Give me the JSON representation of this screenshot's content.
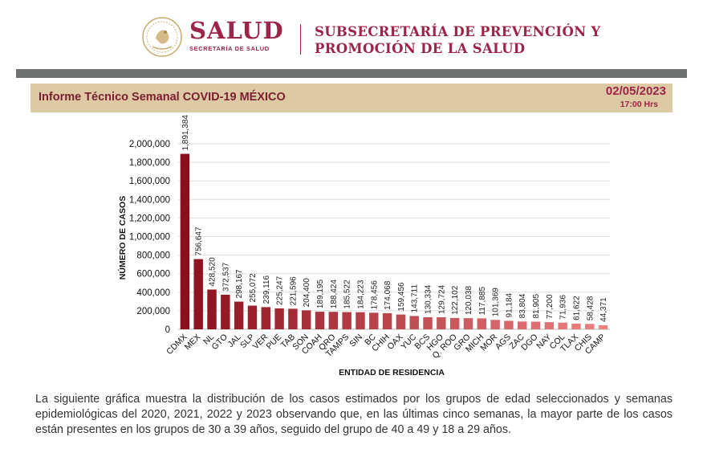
{
  "header": {
    "brand": "SALUD",
    "brand_sub": "SECRETARÍA DE SALUD",
    "subsecretaria_line1": "SUBSECRETARÍA DE PREVENCIÓN Y",
    "subsecretaria_line2": "PROMOCIÓN DE LA SALUD"
  },
  "report": {
    "title": "Informe Técnico Semanal COVID-19 MÉXICO",
    "date": "02/05/2023",
    "time": "17:00 Hrs"
  },
  "colors": {
    "brand": "#9d2449",
    "report_bar": "#ddc9a3",
    "divider_bar": "#6f7271",
    "bar_dark": "#8b0f1c",
    "bar_light": "#ec8181"
  },
  "chart_data": {
    "type": "bar",
    "xlabel": "ENTIDAD DE RESIDENCIA",
    "ylabel": "NÚMERO DE CASOS",
    "ylim": [
      0,
      2000000
    ],
    "yticks": [
      0,
      200000,
      400000,
      600000,
      800000,
      1000000,
      1200000,
      1400000,
      1600000,
      1800000,
      2000000
    ],
    "ytick_labels": [
      "0",
      "200,000",
      "400,000",
      "600,000",
      "800,000",
      "1,000,000",
      "1,200,000",
      "1,400,000",
      "1,600,000",
      "1,800,000",
      "2,000,000"
    ],
    "grid": true,
    "categories": [
      "CDMX",
      "MEX",
      "NL",
      "GTO",
      "JAL",
      "SLP",
      "VER",
      "PUE",
      "TAB",
      "SON",
      "COAH",
      "QRO",
      "TAMPS",
      "SIN",
      "BC",
      "CHIH",
      "OAX",
      "YUC",
      "BCS",
      "HGO",
      "Q. ROO",
      "GRO",
      "MICH",
      "MOR",
      "AGS",
      "ZAC",
      "DGO",
      "NAY",
      "COL",
      "TLAX",
      "CHIS",
      "CAMP"
    ],
    "values": [
      1891384,
      756647,
      428520,
      372537,
      298167,
      255072,
      239116,
      225247,
      221596,
      204400,
      189195,
      188424,
      185522,
      184223,
      178456,
      174068,
      159456,
      143711,
      130334,
      129724,
      122102,
      120038,
      117885,
      101369,
      91184,
      83804,
      81905,
      77200,
      71936,
      61622,
      58428,
      44371
    ],
    "value_labels": [
      "1,891,384",
      "756,647",
      "428,520",
      "372,537",
      "298,167",
      "255,072",
      "239,116",
      "225,247",
      "221,596",
      "204,400",
      "189,195",
      "188,424",
      "185,522",
      "184,223",
      "178,456",
      "174,068",
      "159,456",
      "143,711",
      "130,334",
      "129,724",
      "122,102",
      "120,038",
      "117,885",
      "101,369",
      "91,184",
      "83,804",
      "81,905",
      "77,200",
      "71,936",
      "61,622",
      "58,428",
      "44,371"
    ]
  },
  "description": "La siguiente gráfica muestra la distribución de los casos estimados por los grupos de edad seleccionados y semanas epidemiológicas del 2020, 2021, 2022 y 2023 observando que, en las últimas cinco semanas, la mayor parte de los casos están presentes en los grupos de 30 a 39 años, seguido del grupo de 40 a 49 y 18 a 29 años."
}
